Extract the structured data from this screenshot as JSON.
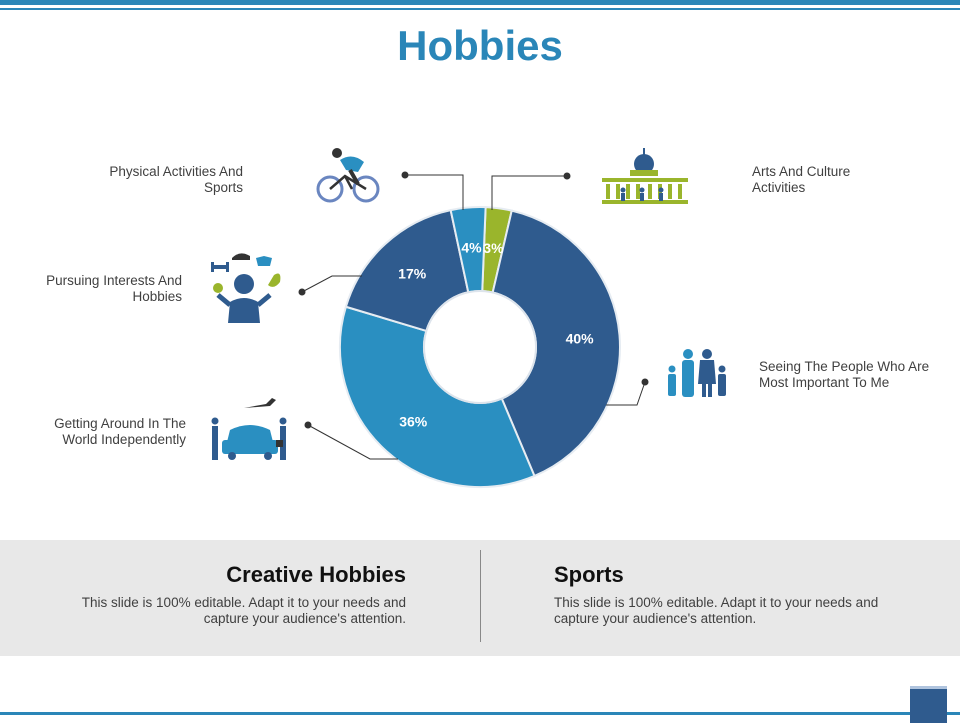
{
  "title": "Hobbies",
  "chart_data": {
    "type": "pie",
    "title": "Hobbies",
    "slices": [
      {
        "label": "Arts And Culture Activities",
        "value": 3,
        "display": "3%",
        "color": "#9ab52c"
      },
      {
        "label": "Seeing The People Who Are Most Important To Me",
        "value": 40,
        "display": "40%",
        "color": "#2f5b8e"
      },
      {
        "label": "Getting Around In The World Independently",
        "value": 36,
        "display": "36%",
        "color": "#2a8fc1"
      },
      {
        "label": "Pursuing Interests And Hobbies",
        "value": 17,
        "display": "17%",
        "color": "#2f5b8e"
      },
      {
        "label": "Physical Activities And Sports",
        "value": 4,
        "display": "4%",
        "color": "#2a8fc1"
      }
    ]
  },
  "labels": {
    "physical": "Physical Activities And Sports",
    "pursuing": "Pursuing Interests And Hobbies",
    "getting": "Getting Around In The World Independently",
    "arts": "Arts And Culture Activities",
    "people": "Seeing The People Who Are Most Important To Me"
  },
  "bottom": {
    "left_title": "Creative Hobbies",
    "left_text": "This slide is 100% editable. Adapt it to your needs and capture your audience's attention.",
    "right_title": "Sports",
    "right_text": "This slide is 100% editable. Adapt it to your needs and capture your audience's attention."
  },
  "icons": [
    "cyclist-icon",
    "hobbies-person-icon",
    "car-travel-icon",
    "museum-icon",
    "family-icon"
  ],
  "colors": {
    "accent": "#2a86b8",
    "dark_blue": "#2f5b8e",
    "light_blue": "#2a8fc1",
    "green": "#9ab52c"
  }
}
